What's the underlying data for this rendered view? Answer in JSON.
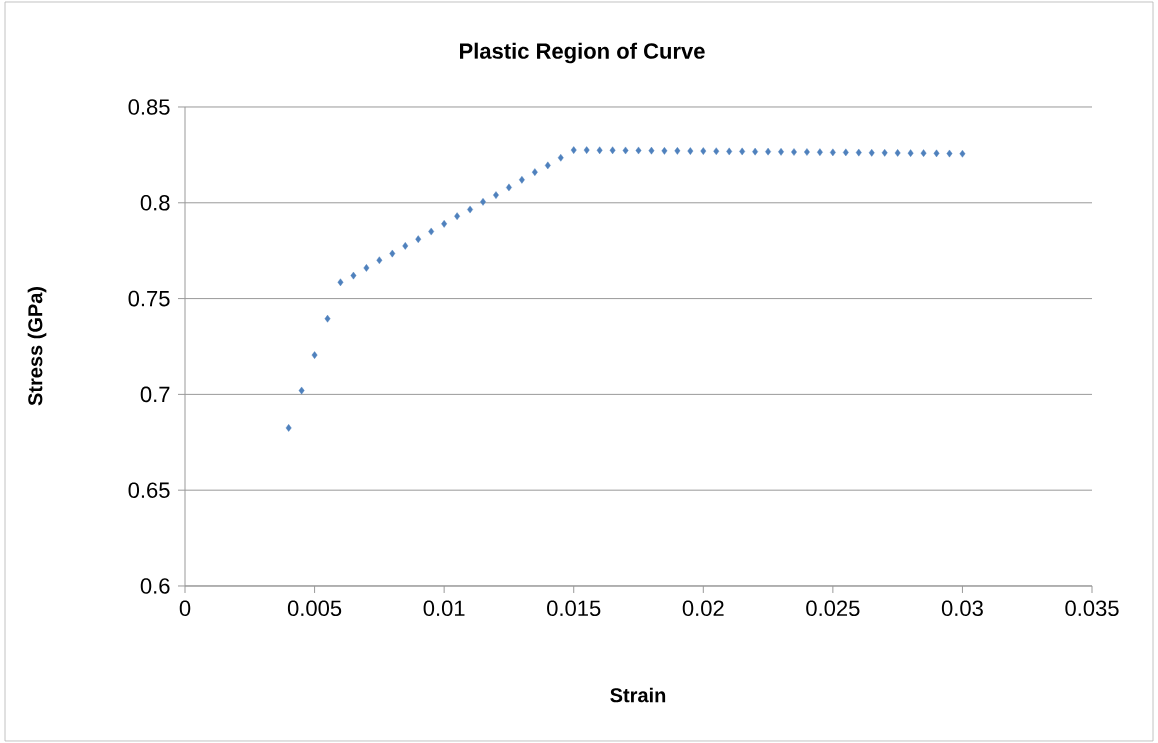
{
  "chart_data": {
    "type": "scatter",
    "title": "Plastic Region of Curve",
    "xlabel": "Strain",
    "ylabel": "Stress (GPa)",
    "x": [
      0.004,
      0.0045,
      0.005,
      0.0055,
      0.006,
      0.0065,
      0.007,
      0.0075,
      0.008,
      0.0085,
      0.009,
      0.0095,
      0.01,
      0.0105,
      0.011,
      0.0115,
      0.012,
      0.0125,
      0.013,
      0.0135,
      0.014,
      0.0145,
      0.015,
      0.0155,
      0.016,
      0.0165,
      0.017,
      0.0175,
      0.018,
      0.0185,
      0.019,
      0.0195,
      0.02,
      0.0205,
      0.021,
      0.0215,
      0.022,
      0.0225,
      0.023,
      0.0235,
      0.024,
      0.0245,
      0.025,
      0.0255,
      0.026,
      0.0265,
      0.027,
      0.0275,
      0.028,
      0.0285,
      0.029,
      0.0295,
      0.03
    ],
    "values": [
      0.6825,
      0.702,
      0.7205,
      0.7395,
      0.7585,
      0.762,
      0.766,
      0.77,
      0.7735,
      0.7775,
      0.781,
      0.785,
      0.789,
      0.793,
      0.7965,
      0.8005,
      0.804,
      0.808,
      0.812,
      0.816,
      0.8195,
      0.8235,
      0.8275,
      0.8275,
      0.8274,
      0.8274,
      0.8273,
      0.8273,
      0.8272,
      0.8271,
      0.8271,
      0.827,
      0.827,
      0.8269,
      0.8268,
      0.8268,
      0.8267,
      0.8267,
      0.8266,
      0.8265,
      0.8265,
      0.8264,
      0.8263,
      0.8263,
      0.8262,
      0.8261,
      0.8261,
      0.826,
      0.8259,
      0.8259,
      0.8258,
      0.8257,
      0.8256
    ],
    "color": "#4f81bd",
    "marker": "diamond",
    "grid": "y",
    "xlim": [
      0,
      0.035
    ],
    "xticks": [
      0,
      0.005,
      0.01,
      0.015,
      0.02,
      0.025,
      0.03,
      0.035
    ],
    "ylim": [
      0.6,
      0.85
    ],
    "yticks": [
      0.6,
      0.65,
      0.7,
      0.75,
      0.8,
      0.85
    ]
  }
}
